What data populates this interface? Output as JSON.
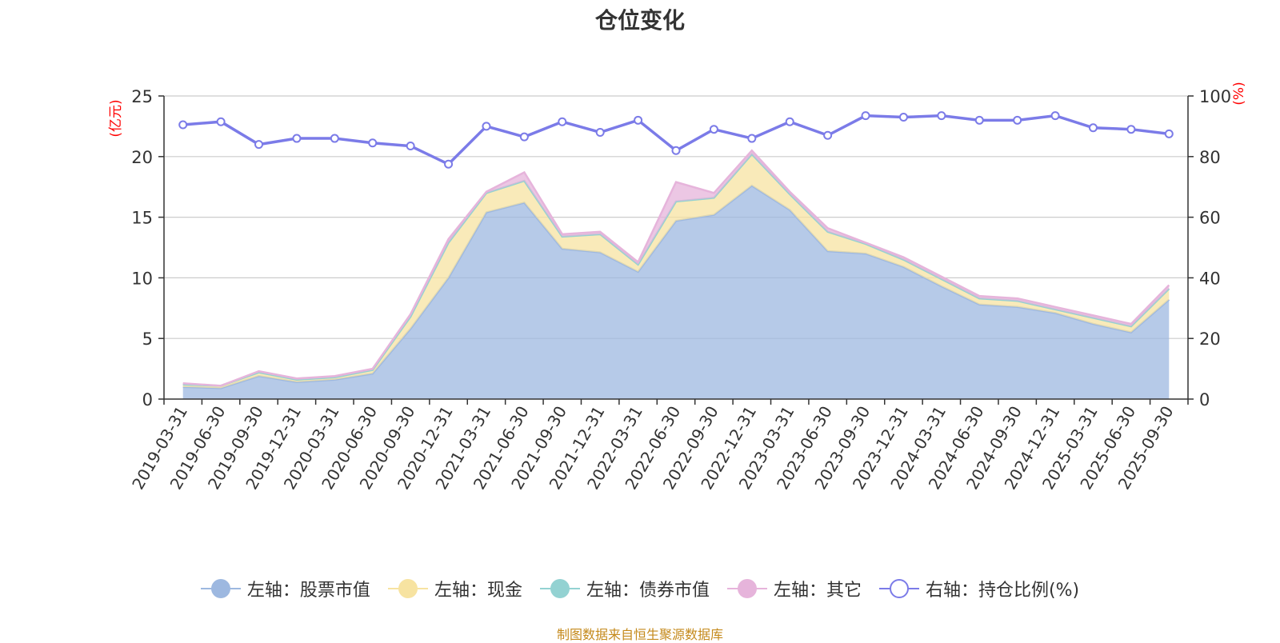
{
  "chart_data": {
    "type": "area",
    "title": "仓位变化",
    "left_axis_unit": "(亿元)",
    "right_axis_unit": "(%)",
    "left_ylim": [
      0,
      25
    ],
    "left_yticks": [
      "0",
      "5",
      "10",
      "15",
      "20",
      "25"
    ],
    "right_ylim": [
      0,
      100
    ],
    "right_yticks": [
      "0",
      "20",
      "40",
      "60",
      "80",
      "100"
    ],
    "categories": [
      "2019-03-31",
      "2019-06-30",
      "2019-09-30",
      "2019-12-31",
      "2020-03-31",
      "2020-06-30",
      "2020-09-30",
      "2020-12-31",
      "2021-03-31",
      "2021-06-30",
      "2021-09-30",
      "2021-12-31",
      "2022-03-31",
      "2022-06-30",
      "2022-09-30",
      "2022-12-31",
      "2023-03-31",
      "2023-06-30",
      "2023-09-30",
      "2023-12-31",
      "2024-03-31",
      "2024-06-30",
      "2024-09-30",
      "2024-12-31",
      "2025-03-31",
      "2025-06-30",
      "2025-09-30"
    ],
    "series": [
      {
        "name": "左轴：股票市值",
        "axis": "left",
        "color": "#9db8e0",
        "values": [
          1.0,
          0.9,
          1.9,
          1.4,
          1.6,
          2.1,
          5.8,
          10.0,
          15.4,
          16.2,
          12.4,
          12.1,
          10.5,
          14.7,
          15.2,
          17.6,
          15.6,
          12.2,
          12.0,
          10.9,
          9.3,
          7.8,
          7.6,
          7.1,
          6.2,
          5.5,
          8.2
        ]
      },
      {
        "name": "左轴：现金",
        "axis": "left",
        "color": "#f7e3a1",
        "values": [
          0.2,
          0.2,
          0.3,
          0.2,
          0.2,
          0.3,
          1.0,
          2.9,
          1.6,
          1.8,
          1.0,
          1.5,
          0.6,
          1.6,
          1.4,
          2.6,
          1.3,
          1.6,
          0.8,
          0.6,
          0.6,
          0.5,
          0.5,
          0.3,
          0.5,
          0.5,
          0.9
        ]
      },
      {
        "name": "左轴：债券市值",
        "axis": "left",
        "color": "#93d2d2",
        "values": [
          0,
          0,
          0,
          0,
          0,
          0,
          0,
          0,
          0,
          0,
          0,
          0,
          0,
          0,
          0,
          0,
          0,
          0,
          0,
          0,
          0,
          0,
          0,
          0,
          0,
          0,
          0
        ]
      },
      {
        "name": "左轴：其它",
        "axis": "left",
        "color": "#e6b4db",
        "values": [
          0.1,
          0.0,
          0.1,
          0.1,
          0.1,
          0.1,
          0.2,
          0.3,
          0.1,
          0.7,
          0.2,
          0.2,
          0.2,
          1.6,
          0.4,
          0.3,
          0.2,
          0.3,
          0.1,
          0.2,
          0.2,
          0.2,
          0.2,
          0.2,
          0.2,
          0.2,
          0.3
        ]
      },
      {
        "name": "右轴：持仓比例(%)",
        "axis": "right",
        "color": "#7b7be8",
        "values": [
          90.5,
          91.5,
          84.0,
          86.0,
          86.0,
          84.5,
          83.5,
          77.5,
          90.0,
          86.5,
          91.5,
          88.0,
          92.0,
          82.0,
          89.0,
          86.0,
          91.5,
          87.0,
          93.5,
          93.0,
          93.5,
          92.0,
          92.0,
          93.5,
          89.5,
          89.0,
          87.5
        ]
      }
    ]
  },
  "legend": [
    {
      "label": "左轴：股票市值",
      "color": "#9db8e0"
    },
    {
      "label": "左轴：现金",
      "color": "#f7e3a1"
    },
    {
      "label": "左轴：债券市值",
      "color": "#93d2d2"
    },
    {
      "label": "左轴：其它",
      "color": "#e6b4db"
    },
    {
      "label": "右轴：持仓比例(%)",
      "color": "#7b7be8"
    }
  ],
  "source_text": "制图数据来自恒生聚源数据库"
}
